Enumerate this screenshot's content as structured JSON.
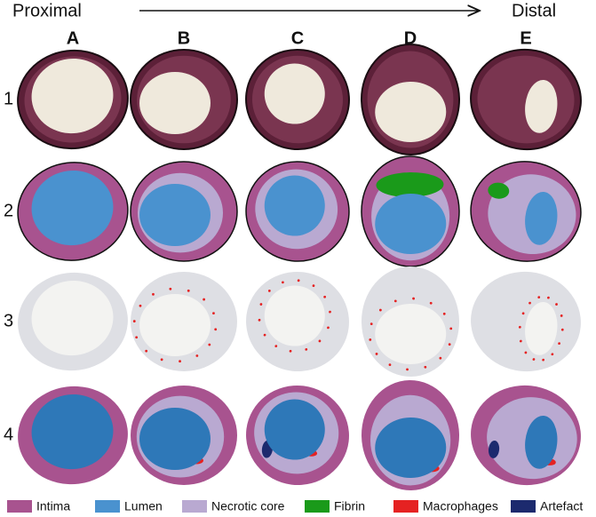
{
  "header": {
    "left": "Proximal",
    "right": "Distal"
  },
  "columns": [
    "A",
    "B",
    "C",
    "D",
    "E"
  ],
  "rows": [
    "1",
    "2",
    "3",
    "4"
  ],
  "legend": [
    {
      "label": "Intima",
      "color": "#a8538f"
    },
    {
      "label": "Lumen",
      "color": "#4a92cf"
    },
    {
      "label": "Necrotic core",
      "color": "#b9a9d1"
    },
    {
      "label": "Fibrin",
      "color": "#1a9a1a"
    },
    {
      "label": "Macrophages",
      "color": "#e52222"
    },
    {
      "label": "Artefact",
      "color": "#1c2a6e"
    }
  ]
}
